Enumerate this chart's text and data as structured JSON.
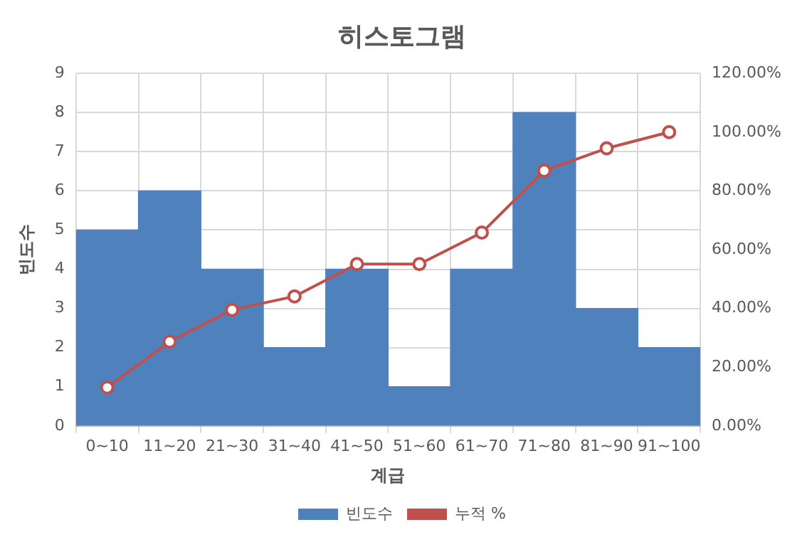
{
  "chart_data": {
    "type": "bar",
    "title": "히스토그램",
    "xlabel": "계급",
    "ylabel": "빈도수",
    "categories": [
      "0~10",
      "11~20",
      "21~30",
      "31~40",
      "41~50",
      "51~60",
      "61~70",
      "71~80",
      "81~90",
      "91~100"
    ],
    "series": [
      {
        "name": "빈도수",
        "color": "#4f81bd",
        "values": [
          5,
          6,
          4,
          2,
          4,
          1,
          4,
          8,
          3,
          2
        ]
      },
      {
        "name": "누적 %",
        "type": "line",
        "axis": "y2",
        "color": "#c0504d",
        "marker": "circle",
        "values": [
          13.1,
          28.7,
          39.5,
          44.1,
          55.1,
          55.1,
          65.8,
          86.9,
          94.5,
          100
        ]
      }
    ],
    "ylim": [
      0,
      9
    ],
    "yticks": [
      0,
      1,
      2,
      3,
      4,
      5,
      6,
      7,
      8,
      9
    ],
    "y2lim": [
      0,
      120
    ],
    "y2ticks": [
      {
        "value": 0,
        "label": "0.00%"
      },
      {
        "value": 20,
        "label": "20.00%"
      },
      {
        "value": 40,
        "label": "40.00%"
      },
      {
        "value": 60,
        "label": "60.00%"
      },
      {
        "value": 80,
        "label": "80.00%"
      },
      {
        "value": 100,
        "label": "100.00%"
      },
      {
        "value": 120,
        "label": "120.00%"
      }
    ],
    "grid": true,
    "legend": "bottom"
  }
}
